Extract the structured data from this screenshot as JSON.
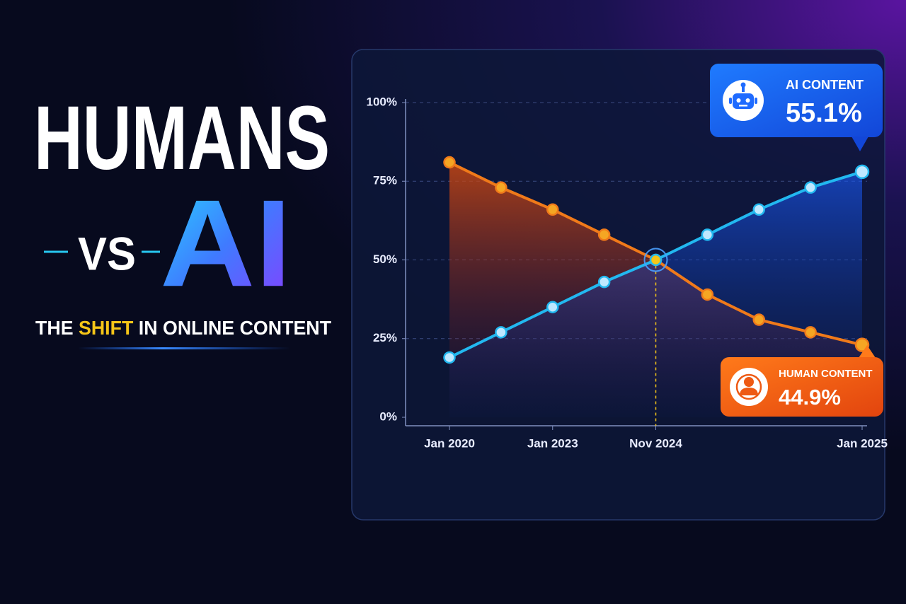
{
  "headline": {
    "line1": "HUMANS",
    "vs": "VS",
    "ai": "AI",
    "subtitle": [
      "THE",
      "SHIFT",
      "IN ONLINE CONTENT"
    ]
  },
  "chart_data": {
    "type": "line",
    "categories": [
      "Jan 2020",
      null,
      "Jan 2023",
      null,
      "Nov 2024",
      null,
      null,
      null,
      "Jan 2025"
    ],
    "series": [
      {
        "name": "HUMAN CONTENT",
        "color": "#f07a1a",
        "marker": "#f5a623",
        "values": [
          81,
          73,
          66,
          58,
          50,
          39,
          31,
          27,
          23
        ]
      },
      {
        "name": "AI CONTENT",
        "color": "#22b8f0",
        "marker": "#bfe8ff",
        "values": [
          19,
          27,
          35,
          43,
          50,
          58,
          66,
          73,
          78
        ]
      }
    ],
    "callouts": [
      {
        "title": "AI CONTENT",
        "value": "55.1%"
      },
      {
        "title": "HUMAN CONTENT",
        "value": "44.9%"
      }
    ],
    "ylim": [
      0,
      100
    ],
    "yticks": [
      {
        "value": 0,
        "label": "0%"
      },
      {
        "value": 25,
        "label": "25%"
      },
      {
        "value": 50,
        "label": "50%"
      },
      {
        "value": 75,
        "label": "75%"
      },
      {
        "value": 100,
        "label": "100%"
      }
    ],
    "grid": true,
    "highlight_color": "#f5c518"
  }
}
